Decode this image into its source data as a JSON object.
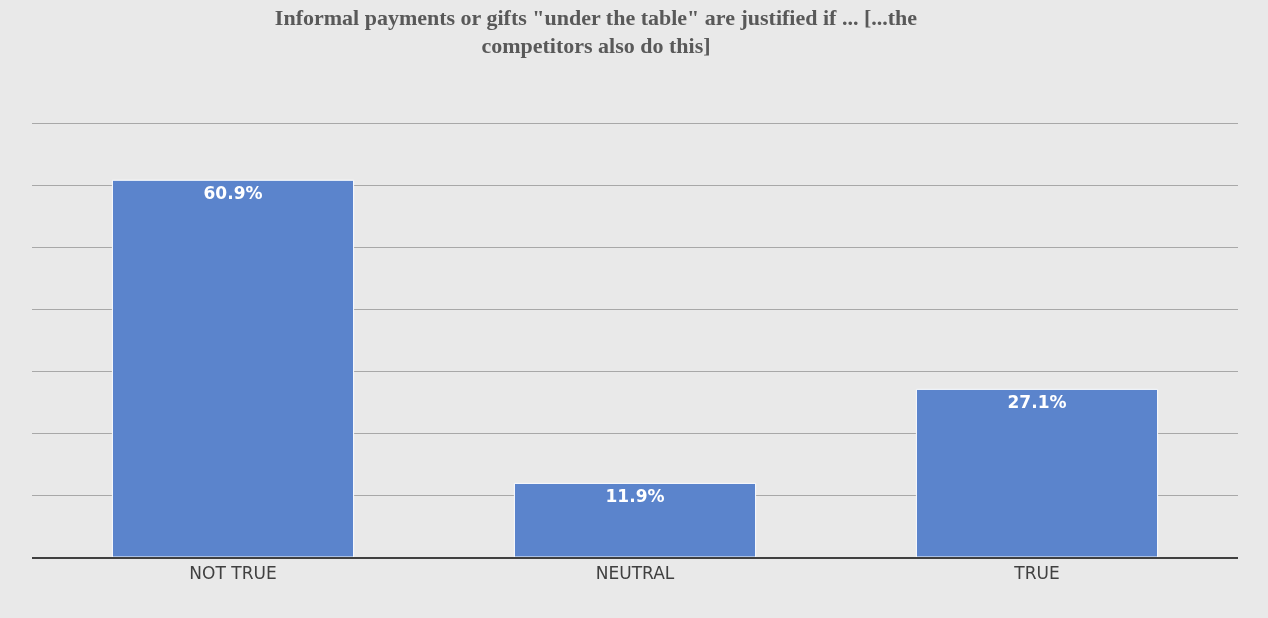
{
  "chart_data": {
    "type": "bar",
    "title": "Informal payments or gifts \"under the table\" are justified if ... [...the competitors also do this]",
    "categories": [
      "NOT TRUE",
      "NEUTRAL",
      "TRUE"
    ],
    "values": [
      60.9,
      11.9,
      27.1
    ],
    "value_labels": [
      "60.9%",
      "11.9%",
      "27.1%"
    ],
    "color": "#5b84cc",
    "grid": "y",
    "tick_labels": "x",
    "legend": false
  }
}
